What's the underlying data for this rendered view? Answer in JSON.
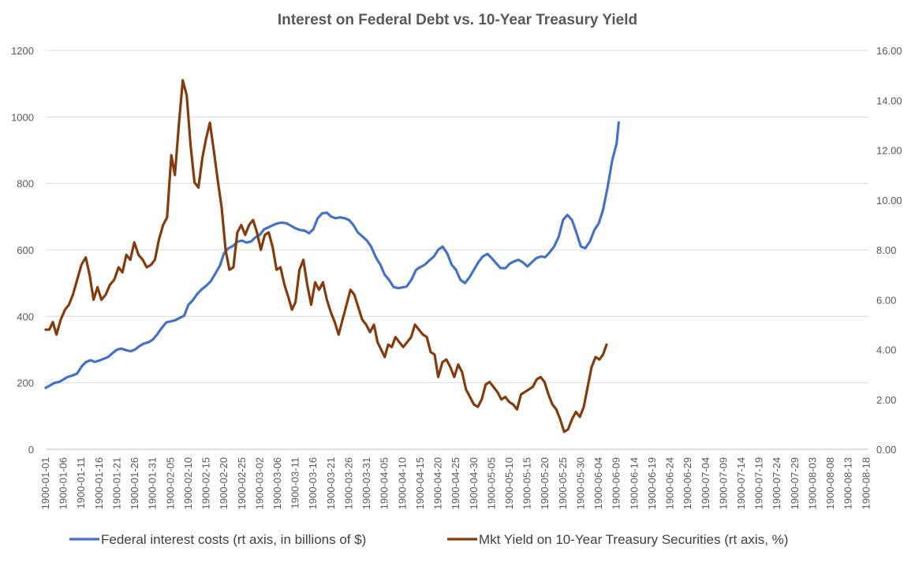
{
  "chart_data": {
    "type": "line",
    "title": "Interest on Federal Debt vs. 10-Year Treasury Yield",
    "xlabel": "",
    "ylabel": "",
    "y_left": {
      "ylim": [
        0,
        1200
      ],
      "ticks": [
        "0",
        "200",
        "400",
        "600",
        "800",
        "1000",
        "1200"
      ]
    },
    "y_right": {
      "ylim": [
        0,
        16
      ],
      "ticks": [
        "0.00",
        "2.00",
        "4.00",
        "6.00",
        "8.00",
        "10.00",
        "12.00",
        "14.00",
        "16.00"
      ]
    },
    "grid": "horizontal",
    "legend_position": "bottom",
    "x_tick_labels": [
      "1900-01-01",
      "1900-01-06",
      "1900-01-11",
      "1900-01-16",
      "1900-01-21",
      "1900-01-26",
      "1900-01-31",
      "1900-02-05",
      "1900-02-10",
      "1900-02-15",
      "1900-02-20",
      "1900-02-25",
      "1900-03-02",
      "1900-03-06",
      "1900-03-11",
      "1900-03-16",
      "1900-03-21",
      "1900-03-26",
      "1900-03-31",
      "1900-04-05",
      "1900-04-10",
      "1900-04-15",
      "1900-04-20",
      "1900-04-25",
      "1900-04-30",
      "1900-05-05",
      "1900-05-10",
      "1900-05-15",
      "1900-05-20",
      "1900-05-25",
      "1900-05-30",
      "1900-06-04",
      "1900-06-09",
      "1900-06-14",
      "1900-06-19",
      "1900-06-24",
      "1900-06-29",
      "1900-07-04",
      "1900-07-09",
      "1900-07-14",
      "1900-07-19",
      "1900-07-24",
      "1900-07-29",
      "1900-08-03",
      "1900-08-08",
      "1900-08-13",
      "1900-08-18"
    ],
    "series": [
      {
        "name": "Federal interest costs (rt axis, in billions of $)",
        "color": "#4472c4",
        "axis": "left",
        "points": [
          [
            0,
            185
          ],
          [
            1.2,
            192
          ],
          [
            2.5,
            200
          ],
          [
            3.8,
            203
          ],
          [
            5,
            210
          ],
          [
            6.2,
            218
          ],
          [
            7.5,
            222
          ],
          [
            8.8,
            228
          ],
          [
            10,
            248
          ],
          [
            11.2,
            262
          ],
          [
            12.5,
            268
          ],
          [
            13.8,
            263
          ],
          [
            15,
            267
          ],
          [
            16.2,
            272
          ],
          [
            17.5,
            278
          ],
          [
            18.8,
            290
          ],
          [
            20,
            300
          ],
          [
            21.2,
            303
          ],
          [
            22.5,
            298
          ],
          [
            23.8,
            295
          ],
          [
            25,
            300
          ],
          [
            26.2,
            310
          ],
          [
            27.5,
            318
          ],
          [
            28.8,
            322
          ],
          [
            30,
            330
          ],
          [
            31.2,
            345
          ],
          [
            32.5,
            365
          ],
          [
            33.8,
            382
          ],
          [
            35,
            385
          ],
          [
            36.2,
            388
          ],
          [
            37.5,
            395
          ],
          [
            38.8,
            402
          ],
          [
            40,
            435
          ],
          [
            41.2,
            448
          ],
          [
            42.5,
            468
          ],
          [
            43.8,
            482
          ],
          [
            45,
            492
          ],
          [
            46.2,
            505
          ],
          [
            47.5,
            528
          ],
          [
            48.8,
            552
          ],
          [
            50,
            590
          ],
          [
            51.2,
            605
          ],
          [
            52.5,
            612
          ],
          [
            53.8,
            625
          ],
          [
            55,
            628
          ],
          [
            56.2,
            622
          ],
          [
            57.5,
            625
          ],
          [
            58.8,
            638
          ],
          [
            60,
            645
          ],
          [
            61.2,
            662
          ],
          [
            62.5,
            668
          ],
          [
            63.8,
            675
          ],
          [
            65,
            680
          ],
          [
            66.2,
            682
          ],
          [
            67.5,
            680
          ],
          [
            68.8,
            672
          ],
          [
            70,
            665
          ],
          [
            71.2,
            660
          ],
          [
            72.5,
            658
          ],
          [
            73.8,
            650
          ],
          [
            75,
            662
          ],
          [
            76.2,
            695
          ],
          [
            77.5,
            710
          ],
          [
            78.8,
            712
          ],
          [
            80,
            700
          ],
          [
            81.2,
            695
          ],
          [
            82.5,
            698
          ],
          [
            83.8,
            695
          ],
          [
            85,
            690
          ],
          [
            86.2,
            675
          ],
          [
            87.5,
            652
          ],
          [
            88.8,
            640
          ],
          [
            90,
            628
          ],
          [
            91.2,
            610
          ],
          [
            92.5,
            578
          ],
          [
            93.8,
            555
          ],
          [
            95,
            525
          ],
          [
            96.2,
            510
          ],
          [
            97.5,
            488
          ],
          [
            98.8,
            485
          ],
          [
            100,
            487
          ],
          [
            101.2,
            490
          ],
          [
            102.5,
            510
          ],
          [
            103.8,
            540
          ],
          [
            105,
            548
          ],
          [
            106.2,
            555
          ],
          [
            107.5,
            568
          ],
          [
            108.8,
            580
          ],
          [
            110,
            600
          ],
          [
            111.2,
            610
          ],
          [
            112.5,
            590
          ],
          [
            113.8,
            555
          ],
          [
            115,
            540
          ],
          [
            116.2,
            510
          ],
          [
            117.5,
            500
          ],
          [
            118.8,
            518
          ],
          [
            120,
            540
          ],
          [
            121.2,
            562
          ],
          [
            122.5,
            580
          ],
          [
            123.8,
            588
          ],
          [
            125,
            575
          ],
          [
            126.2,
            560
          ],
          [
            127.5,
            545
          ],
          [
            128.8,
            545
          ],
          [
            130,
            558
          ],
          [
            131.2,
            565
          ],
          [
            132.5,
            570
          ],
          [
            133.8,
            562
          ],
          [
            135,
            550
          ],
          [
            136.2,
            562
          ],
          [
            137.5,
            575
          ],
          [
            138.8,
            580
          ],
          [
            140,
            578
          ],
          [
            141.2,
            592
          ],
          [
            142.5,
            610
          ],
          [
            143.8,
            640
          ],
          [
            145,
            690
          ],
          [
            146.2,
            705
          ],
          [
            147.5,
            690
          ],
          [
            148.8,
            650
          ],
          [
            150,
            610
          ],
          [
            151.2,
            605
          ],
          [
            152.5,
            625
          ],
          [
            153.8,
            660
          ],
          [
            155,
            680
          ],
          [
            156.2,
            720
          ],
          [
            157.5,
            790
          ],
          [
            158.8,
            870
          ],
          [
            160,
            920
          ],
          [
            160.6,
            983
          ]
        ]
      },
      {
        "name": "Mkt Yield on 10-Year Treasury Securities (rt axis, %)",
        "color": "#843c0c",
        "axis": "right",
        "points": [
          [
            0,
            4.8
          ],
          [
            1,
            4.8
          ],
          [
            2,
            5.1
          ],
          [
            3,
            4.6
          ],
          [
            4.2,
            5.2
          ],
          [
            5.4,
            5.6
          ],
          [
            6.5,
            5.8
          ],
          [
            7.6,
            6.2
          ],
          [
            8.8,
            6.8
          ],
          [
            10,
            7.4
          ],
          [
            11.2,
            7.7
          ],
          [
            12.3,
            7.0
          ],
          [
            13.4,
            6.0
          ],
          [
            14.5,
            6.5
          ],
          [
            15.6,
            6.0
          ],
          [
            16.8,
            6.2
          ],
          [
            18,
            6.6
          ],
          [
            19.2,
            6.8
          ],
          [
            20.4,
            7.3
          ],
          [
            21.5,
            7.1
          ],
          [
            22.6,
            7.8
          ],
          [
            23.7,
            7.6
          ],
          [
            24.8,
            8.3
          ],
          [
            26,
            7.8
          ],
          [
            27.2,
            7.6
          ],
          [
            28.3,
            7.3
          ],
          [
            29.5,
            7.4
          ],
          [
            30.6,
            7.6
          ],
          [
            31.7,
            8.4
          ],
          [
            32.9,
            9.0
          ],
          [
            34,
            9.3
          ],
          [
            35.2,
            11.8
          ],
          [
            36.2,
            11.0
          ],
          [
            37.3,
            13.0
          ],
          [
            38.4,
            14.8
          ],
          [
            39.5,
            14.2
          ],
          [
            40.6,
            12.2
          ],
          [
            41.7,
            10.7
          ],
          [
            42.8,
            10.5
          ],
          [
            43.9,
            11.7
          ],
          [
            45,
            12.5
          ],
          [
            46,
            13.1
          ],
          [
            47.1,
            12.0
          ],
          [
            48.2,
            10.8
          ],
          [
            49.3,
            9.7
          ],
          [
            50.4,
            8.0
          ],
          [
            51.5,
            7.2
          ],
          [
            52.6,
            7.3
          ],
          [
            53.7,
            8.7
          ],
          [
            54.8,
            9.0
          ],
          [
            55.9,
            8.6
          ],
          [
            57,
            9.0
          ],
          [
            58.1,
            9.2
          ],
          [
            59.2,
            8.7
          ],
          [
            60.3,
            8.0
          ],
          [
            61.4,
            8.6
          ],
          [
            62.5,
            8.7
          ],
          [
            63.6,
            8.1
          ],
          [
            64.7,
            7.2
          ],
          [
            65.8,
            7.3
          ],
          [
            66.9,
            6.6
          ],
          [
            68,
            6.1
          ],
          [
            69,
            5.6
          ],
          [
            70,
            5.9
          ],
          [
            71.1,
            7.2
          ],
          [
            72.2,
            7.6
          ],
          [
            73.3,
            6.6
          ],
          [
            74.4,
            5.8
          ],
          [
            75.5,
            6.7
          ],
          [
            76.6,
            6.4
          ],
          [
            77.7,
            6.7
          ],
          [
            78.8,
            6.0
          ],
          [
            79.9,
            5.5
          ],
          [
            81,
            5.1
          ],
          [
            82.1,
            4.6
          ],
          [
            83.2,
            5.2
          ],
          [
            84.3,
            5.8
          ],
          [
            85.4,
            6.4
          ],
          [
            86.5,
            6.2
          ],
          [
            87.6,
            5.7
          ],
          [
            88.7,
            5.2
          ],
          [
            89.8,
            5.0
          ],
          [
            90.9,
            4.7
          ],
          [
            92,
            5.0
          ],
          [
            93,
            4.3
          ],
          [
            94,
            4.0
          ],
          [
            95,
            3.7
          ],
          [
            96,
            4.2
          ],
          [
            97,
            4.1
          ],
          [
            98,
            4.5
          ],
          [
            99.1,
            4.3
          ],
          [
            100.2,
            4.1
          ],
          [
            101.3,
            4.3
          ],
          [
            102.4,
            4.5
          ],
          [
            103.5,
            5.0
          ],
          [
            104.6,
            4.8
          ],
          [
            105.7,
            4.6
          ],
          [
            106.8,
            4.5
          ],
          [
            107.9,
            3.9
          ],
          [
            109,
            3.8
          ],
          [
            110,
            2.9
          ],
          [
            111.2,
            3.5
          ],
          [
            112.3,
            3.6
          ],
          [
            113.4,
            3.3
          ],
          [
            114.5,
            2.9
          ],
          [
            115.6,
            3.4
          ],
          [
            116.7,
            3.1
          ],
          [
            117.8,
            2.4
          ],
          [
            118.9,
            2.1
          ],
          [
            120,
            1.8
          ],
          [
            121.1,
            1.7
          ],
          [
            122.2,
            2.0
          ],
          [
            123.3,
            2.6
          ],
          [
            124.4,
            2.7
          ],
          [
            125.5,
            2.5
          ],
          [
            126.6,
            2.3
          ],
          [
            127.7,
            2.0
          ],
          [
            128.8,
            2.1
          ],
          [
            129.9,
            1.9
          ],
          [
            131,
            1.8
          ],
          [
            132.1,
            1.6
          ],
          [
            133.2,
            2.2
          ],
          [
            134.3,
            2.3
          ],
          [
            135.4,
            2.4
          ],
          [
            136.5,
            2.5
          ],
          [
            137.6,
            2.8
          ],
          [
            138.7,
            2.9
          ],
          [
            139.8,
            2.7
          ],
          [
            140.9,
            2.2
          ],
          [
            142,
            1.8
          ],
          [
            143.1,
            1.6
          ],
          [
            144.2,
            1.2
          ],
          [
            145.3,
            0.7
          ],
          [
            146.4,
            0.8
          ],
          [
            147.5,
            1.2
          ],
          [
            148.6,
            1.5
          ],
          [
            149.7,
            1.3
          ],
          [
            150.8,
            1.7
          ],
          [
            151.9,
            2.5
          ],
          [
            153,
            3.3
          ],
          [
            154.1,
            3.7
          ],
          [
            155.2,
            3.6
          ],
          [
            156.2,
            3.8
          ],
          [
            157.2,
            4.2
          ]
        ]
      }
    ]
  }
}
